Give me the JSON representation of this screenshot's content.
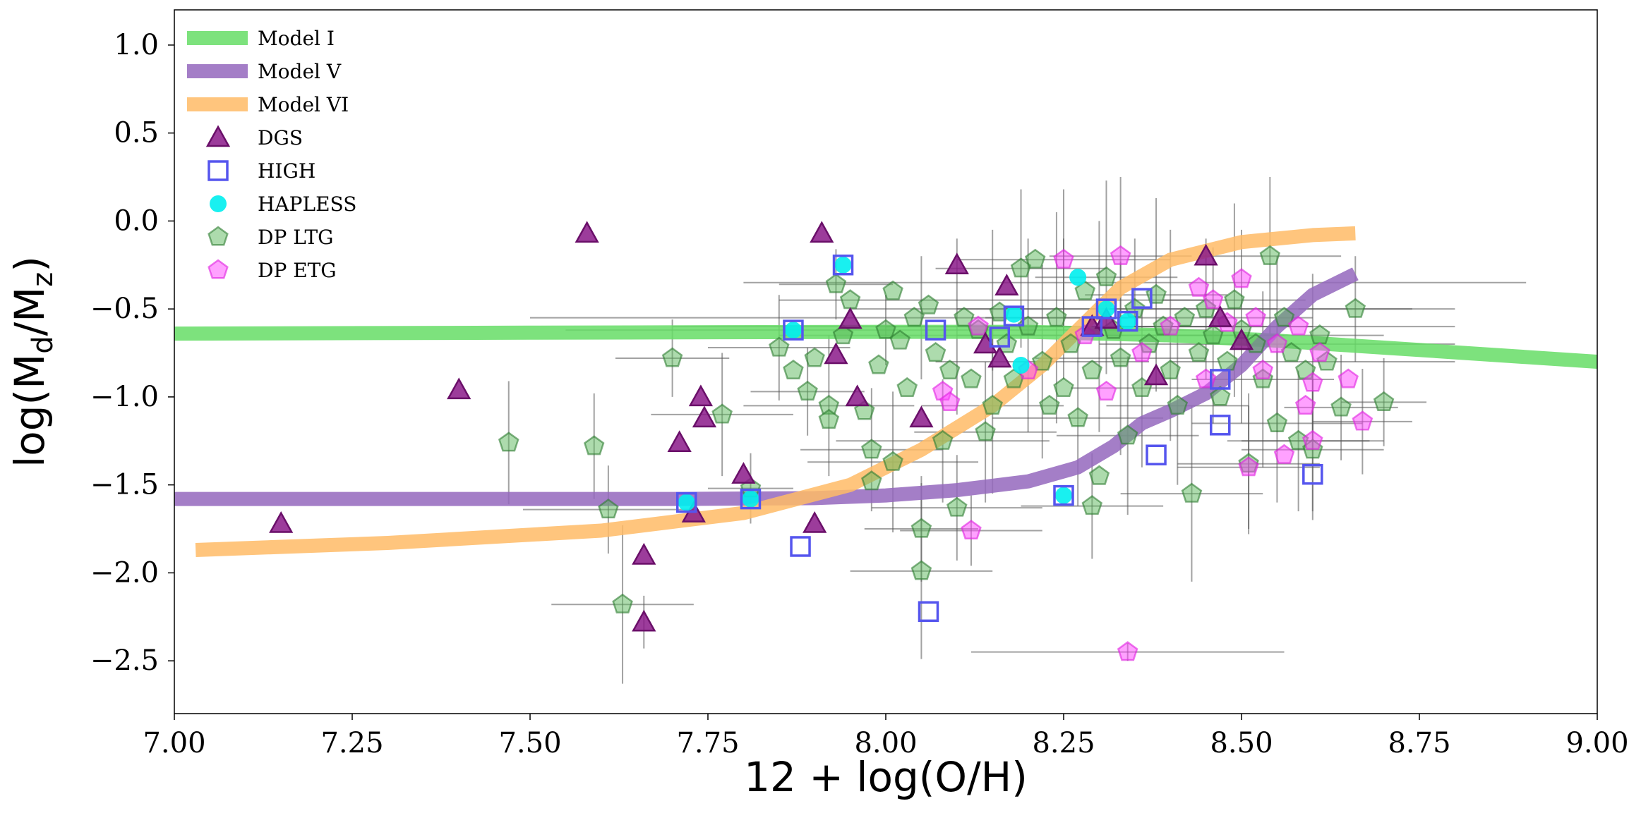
{
  "chart_data": {
    "type": "scatter",
    "xlabel": "12 + log(O/H)",
    "ylabel_parts": {
      "pre": "log(M",
      "sub1": "d",
      "mid": "/M",
      "sub2": "z",
      "post": ")"
    },
    "xlim": [
      7.0,
      9.0
    ],
    "ylim": [
      -2.8,
      1.2
    ],
    "xticks": [
      "7.00",
      "7.25",
      "7.50",
      "7.75",
      "8.00",
      "8.25",
      "8.50",
      "8.75",
      "9.00"
    ],
    "yticks": [
      "1.0",
      "0.5",
      "0.0",
      "−0.5",
      "−1.0",
      "−1.5",
      "−2.0",
      "−2.5"
    ],
    "legend_position": "top-left",
    "models": [
      {
        "name": "Model I",
        "color": "#66dd66",
        "points": [
          [
            7.0,
            -0.64
          ],
          [
            7.5,
            -0.635
          ],
          [
            8.0,
            -0.63
          ],
          [
            8.2,
            -0.63
          ],
          [
            8.4,
            -0.65
          ],
          [
            8.55,
            -0.68
          ],
          [
            8.7,
            -0.72
          ],
          [
            8.85,
            -0.76
          ],
          [
            9.0,
            -0.8
          ]
        ]
      },
      {
        "name": "Model V",
        "color": "#9467bd",
        "points": [
          [
            7.0,
            -1.58
          ],
          [
            7.4,
            -1.58
          ],
          [
            7.7,
            -1.58
          ],
          [
            7.9,
            -1.575
          ],
          [
            8.0,
            -1.56
          ],
          [
            8.1,
            -1.53
          ],
          [
            8.2,
            -1.48
          ],
          [
            8.27,
            -1.4
          ],
          [
            8.32,
            -1.28
          ],
          [
            8.36,
            -1.15
          ],
          [
            8.4,
            -1.08
          ],
          [
            8.45,
            -0.98
          ],
          [
            8.5,
            -0.82
          ],
          [
            8.55,
            -0.6
          ],
          [
            8.6,
            -0.42
          ],
          [
            8.66,
            -0.3
          ]
        ]
      },
      {
        "name": "Model VI",
        "color": "#ffbb66",
        "points": [
          [
            7.03,
            -1.87
          ],
          [
            7.3,
            -1.83
          ],
          [
            7.6,
            -1.76
          ],
          [
            7.8,
            -1.66
          ],
          [
            7.95,
            -1.5
          ],
          [
            8.05,
            -1.3
          ],
          [
            8.15,
            -1.05
          ],
          [
            8.22,
            -0.82
          ],
          [
            8.28,
            -0.58
          ],
          [
            8.33,
            -0.38
          ],
          [
            8.4,
            -0.22
          ],
          [
            8.5,
            -0.12
          ],
          [
            8.6,
            -0.08
          ],
          [
            8.66,
            -0.07
          ]
        ]
      }
    ],
    "series": [
      {
        "name": "DGS",
        "marker": "triangle",
        "fill": "#8b1a89",
        "stroke": "#6a0f69",
        "points": [
          [
            7.15,
            -1.72
          ],
          [
            7.4,
            -0.96
          ],
          [
            7.58,
            -0.07
          ],
          [
            7.66,
            -1.9
          ],
          [
            7.66,
            -2.28
          ],
          [
            7.71,
            -1.26
          ],
          [
            7.73,
            -1.66
          ],
          [
            7.74,
            -1.0
          ],
          [
            7.745,
            -1.12
          ],
          [
            7.8,
            -1.44
          ],
          [
            7.9,
            -1.72
          ],
          [
            7.91,
            -0.07
          ],
          [
            7.93,
            -0.76
          ],
          [
            7.95,
            -0.56
          ],
          [
            7.96,
            -1.0
          ],
          [
            8.05,
            -1.12
          ],
          [
            8.1,
            -0.25
          ],
          [
            8.14,
            -0.7
          ],
          [
            8.16,
            -0.78
          ],
          [
            8.17,
            -0.37
          ],
          [
            8.29,
            -0.6
          ],
          [
            8.31,
            -0.56
          ],
          [
            8.38,
            -0.88
          ],
          [
            8.45,
            -0.2
          ],
          [
            8.47,
            -0.55
          ],
          [
            8.5,
            -0.68
          ]
        ]
      },
      {
        "name": "HIGH",
        "marker": "square-open",
        "fill": "none",
        "stroke": "#5555ee",
        "points": [
          [
            7.72,
            -1.6
          ],
          [
            7.81,
            -1.58
          ],
          [
            7.87,
            -0.62
          ],
          [
            7.88,
            -1.85
          ],
          [
            7.94,
            -0.25
          ],
          [
            8.06,
            -2.22
          ],
          [
            8.07,
            -0.62
          ],
          [
            8.16,
            -0.66
          ],
          [
            8.18,
            -0.54
          ],
          [
            8.25,
            -1.56
          ],
          [
            8.29,
            -0.6
          ],
          [
            8.31,
            -0.5
          ],
          [
            8.34,
            -0.57
          ],
          [
            8.36,
            -0.44
          ],
          [
            8.38,
            -1.33
          ],
          [
            8.47,
            -0.9
          ],
          [
            8.47,
            -1.16
          ],
          [
            8.6,
            -1.44
          ]
        ]
      },
      {
        "name": "HAPLESS",
        "marker": "circle",
        "fill": "#00eeee",
        "stroke": "#00eeee",
        "points": [
          [
            7.72,
            -1.6
          ],
          [
            7.81,
            -1.58
          ],
          [
            7.87,
            -0.62
          ],
          [
            7.94,
            -0.25
          ],
          [
            8.18,
            -0.53
          ],
          [
            8.19,
            -0.82
          ],
          [
            8.25,
            -1.56
          ],
          [
            8.27,
            -0.32
          ],
          [
            8.31,
            -0.5
          ],
          [
            8.34,
            -0.57
          ]
        ]
      },
      {
        "name": "DP LTG",
        "marker": "pentagon",
        "fill": "#5cb85c",
        "stroke": "#2e7d32",
        "points": [
          [
            7.47,
            -1.26
          ],
          [
            7.59,
            -1.28
          ],
          [
            7.61,
            -1.64
          ],
          [
            7.63,
            -2.18
          ],
          [
            7.7,
            -0.78
          ],
          [
            7.77,
            -1.1
          ],
          [
            7.81,
            -1.52
          ],
          [
            7.85,
            -0.72
          ],
          [
            7.87,
            -0.85
          ],
          [
            7.89,
            -0.97
          ],
          [
            7.9,
            -0.78
          ],
          [
            7.92,
            -1.05
          ],
          [
            7.92,
            -1.13
          ],
          [
            7.93,
            -0.36
          ],
          [
            7.94,
            -0.65
          ],
          [
            7.95,
            -0.45
          ],
          [
            7.97,
            -1.08
          ],
          [
            7.98,
            -1.3
          ],
          [
            7.98,
            -1.48
          ],
          [
            7.99,
            -0.82
          ],
          [
            8.0,
            -0.62
          ],
          [
            8.01,
            -1.37
          ],
          [
            8.01,
            -0.4
          ],
          [
            8.02,
            -0.68
          ],
          [
            8.03,
            -0.95
          ],
          [
            8.04,
            -0.55
          ],
          [
            8.05,
            -1.99
          ],
          [
            8.05,
            -1.75
          ],
          [
            8.06,
            -0.48
          ],
          [
            8.07,
            -0.75
          ],
          [
            8.08,
            -1.25
          ],
          [
            8.09,
            -0.85
          ],
          [
            8.1,
            -1.63
          ],
          [
            8.11,
            -0.55
          ],
          [
            8.12,
            -0.9
          ],
          [
            8.13,
            -0.62
          ],
          [
            8.14,
            -1.2
          ],
          [
            8.15,
            -1.05
          ],
          [
            8.16,
            -0.52
          ],
          [
            8.17,
            -0.7
          ],
          [
            8.18,
            -0.9
          ],
          [
            8.19,
            -0.27
          ],
          [
            8.2,
            -0.6
          ],
          [
            8.21,
            -0.22
          ],
          [
            8.22,
            -0.8
          ],
          [
            8.23,
            -1.05
          ],
          [
            8.24,
            -0.55
          ],
          [
            8.25,
            -0.95
          ],
          [
            8.26,
            -0.7
          ],
          [
            8.27,
            -1.12
          ],
          [
            8.28,
            -0.4
          ],
          [
            8.29,
            -1.62
          ],
          [
            8.29,
            -0.85
          ],
          [
            8.3,
            -1.45
          ],
          [
            8.31,
            -0.32
          ],
          [
            8.32,
            -0.62
          ],
          [
            8.33,
            -0.78
          ],
          [
            8.34,
            -1.22
          ],
          [
            8.35,
            -0.5
          ],
          [
            8.36,
            -0.95
          ],
          [
            8.37,
            -0.7
          ],
          [
            8.38,
            -0.42
          ],
          [
            8.39,
            -0.6
          ],
          [
            8.4,
            -0.85
          ],
          [
            8.41,
            -1.05
          ],
          [
            8.42,
            -0.55
          ],
          [
            8.43,
            -1.55
          ],
          [
            8.44,
            -0.75
          ],
          [
            8.45,
            -0.5
          ],
          [
            8.46,
            -0.65
          ],
          [
            8.47,
            -1.0
          ],
          [
            8.48,
            -0.8
          ],
          [
            8.49,
            -0.45
          ],
          [
            8.5,
            -0.62
          ],
          [
            8.51,
            -1.38
          ],
          [
            8.52,
            -0.7
          ],
          [
            8.53,
            -0.9
          ],
          [
            8.54,
            -0.2
          ],
          [
            8.55,
            -1.15
          ],
          [
            8.56,
            -0.55
          ],
          [
            8.57,
            -0.75
          ],
          [
            8.58,
            -1.25
          ],
          [
            8.59,
            -0.85
          ],
          [
            8.6,
            -1.3
          ],
          [
            8.61,
            -0.65
          ],
          [
            8.62,
            -0.8
          ],
          [
            8.64,
            -1.06
          ],
          [
            8.66,
            -0.5
          ],
          [
            8.7,
            -1.03
          ]
        ]
      },
      {
        "name": "DP ETG",
        "marker": "pentagon",
        "fill": "#ff44ff",
        "stroke": "#e020e0",
        "points": [
          [
            8.08,
            -0.97
          ],
          [
            8.09,
            -1.03
          ],
          [
            8.12,
            -1.76
          ],
          [
            8.13,
            -0.6
          ],
          [
            8.2,
            -0.85
          ],
          [
            8.25,
            -0.22
          ],
          [
            8.28,
            -0.65
          ],
          [
            8.31,
            -0.97
          ],
          [
            8.33,
            -0.2
          ],
          [
            8.34,
            -2.45
          ],
          [
            8.36,
            -0.75
          ],
          [
            8.4,
            -0.6
          ],
          [
            8.44,
            -0.38
          ],
          [
            8.45,
            -0.9
          ],
          [
            8.46,
            -0.45
          ],
          [
            8.48,
            -0.58
          ],
          [
            8.5,
            -0.33
          ],
          [
            8.51,
            -1.4
          ],
          [
            8.52,
            -0.55
          ],
          [
            8.53,
            -0.85
          ],
          [
            8.55,
            -0.7
          ],
          [
            8.56,
            -1.33
          ],
          [
            8.58,
            -0.6
          ],
          [
            8.59,
            -1.05
          ],
          [
            8.6,
            -1.25
          ],
          [
            8.6,
            -0.92
          ],
          [
            8.61,
            -0.75
          ],
          [
            8.65,
            -0.9
          ],
          [
            8.67,
            -1.14
          ]
        ]
      }
    ],
    "error_bars": [
      [
        7.47,
        -1.26,
        0.0,
        0.35
      ],
      [
        7.59,
        -1.28,
        0.0,
        0.3
      ],
      [
        7.61,
        -1.64,
        0.12,
        0.25
      ],
      [
        7.63,
        -2.18,
        0.1,
        0.45
      ],
      [
        7.66,
        -2.28,
        0.0,
        0.15
      ],
      [
        7.7,
        -0.78,
        0.08,
        0.22
      ],
      [
        7.77,
        -1.1,
        0.1,
        0.35
      ],
      [
        7.81,
        -1.52,
        0.06,
        0.2
      ],
      [
        7.85,
        -0.72,
        0.1,
        0.3
      ],
      [
        7.89,
        -0.97,
        0.08,
        0.25
      ],
      [
        7.92,
        -1.05,
        0.12,
        0.4
      ],
      [
        7.93,
        -0.36,
        0.08,
        0.2
      ],
      [
        7.98,
        -1.3,
        0.1,
        0.35
      ],
      [
        8.01,
        -1.37,
        0.12,
        0.4
      ],
      [
        8.05,
        -1.99,
        0.1,
        0.5
      ],
      [
        8.05,
        -1.75,
        0.08,
        0.3
      ],
      [
        8.08,
        -1.25,
        0.15,
        0.35
      ],
      [
        8.1,
        -1.63,
        0.12,
        0.3
      ],
      [
        8.14,
        -1.2,
        0.1,
        0.4
      ],
      [
        8.15,
        -1.05,
        0.1,
        0.5
      ],
      [
        8.19,
        -0.27,
        0.12,
        0.45
      ],
      [
        8.22,
        -0.8,
        0.15,
        0.55
      ],
      [
        8.24,
        -0.55,
        0.1,
        0.6
      ],
      [
        8.27,
        -1.12,
        0.12,
        0.5
      ],
      [
        8.29,
        -1.62,
        0.1,
        0.3
      ],
      [
        8.31,
        -0.32,
        0.1,
        0.55
      ],
      [
        8.33,
        -0.78,
        0.12,
        0.55
      ],
      [
        8.34,
        -1.22,
        0.1,
        0.45
      ],
      [
        8.36,
        -0.95,
        0.1,
        0.45
      ],
      [
        8.38,
        -0.42,
        0.1,
        0.55
      ],
      [
        8.41,
        -1.05,
        0.1,
        0.45
      ],
      [
        8.43,
        -1.55,
        0.1,
        0.5
      ],
      [
        8.46,
        -0.65,
        0.1,
        0.5
      ],
      [
        8.49,
        -0.45,
        0.1,
        0.55
      ],
      [
        8.51,
        -1.38,
        0.1,
        0.4
      ],
      [
        8.53,
        -0.9,
        0.1,
        0.5
      ],
      [
        8.54,
        -0.2,
        0.1,
        0.45
      ],
      [
        8.55,
        -1.15,
        0.12,
        0.45
      ],
      [
        8.58,
        -1.25,
        0.1,
        0.4
      ],
      [
        8.6,
        -1.3,
        0.1,
        0.4
      ],
      [
        8.64,
        -1.06,
        0.08,
        0.3
      ],
      [
        8.66,
        -0.5,
        0.08,
        0.3
      ],
      [
        8.7,
        -1.03,
        0.06,
        0.25
      ],
      [
        8.34,
        -2.45,
        0.22,
        0.05
      ],
      [
        8.12,
        -1.76,
        0.1,
        0.2
      ],
      [
        8.25,
        -0.22,
        0.15,
        0.4
      ],
      [
        8.33,
        -0.2,
        0.1,
        0.45
      ],
      [
        8.51,
        -1.4,
        0.1,
        0.35
      ],
      [
        8.6,
        -1.25,
        0.1,
        0.4
      ],
      [
        8.67,
        -1.14,
        0.07,
        0.3
      ],
      [
        8.0,
        -0.62,
        0.45,
        0.2
      ],
      [
        8.05,
        -0.55,
        0.55,
        0.35
      ],
      [
        8.1,
        -0.6,
        0.4,
        0.5
      ],
      [
        8.2,
        -0.65,
        0.35,
        0.55
      ],
      [
        8.3,
        -0.6,
        0.3,
        0.6
      ],
      [
        8.4,
        -0.65,
        0.3,
        0.6
      ],
      [
        8.5,
        -0.6,
        0.3,
        0.55
      ],
      [
        8.55,
        -0.7,
        0.25,
        0.5
      ],
      [
        8.6,
        -0.8,
        0.2,
        0.5
      ],
      [
        8.45,
        -0.5,
        0.35,
        0.4
      ],
      [
        8.35,
        -0.35,
        0.55,
        0.25
      ],
      [
        8.25,
        -0.5,
        0.3,
        0.4
      ],
      [
        8.15,
        -0.45,
        0.3,
        0.4
      ]
    ]
  }
}
